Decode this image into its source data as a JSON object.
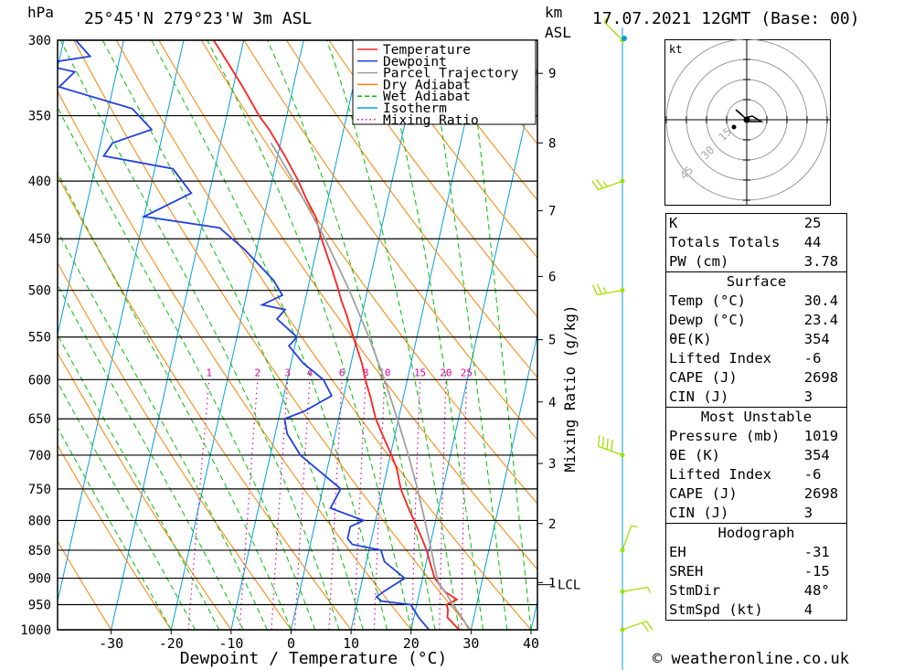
{
  "header": {
    "pressure_unit": "hPa",
    "location": "25°45'N  279°23'W  3m ASL",
    "height_unit_line1": "km",
    "height_unit_line2": "ASL",
    "datetime": "17.07.2021  12GMT  (Base: 00)"
  },
  "chart_data": {
    "type": "line",
    "title": "25°45'N  279°23'W  3m ASL",
    "xlabel": "Dewpoint / Temperature (°C)",
    "ylabel": "hPa",
    "right_axis_label": "Mixing Ratio (g/kg)",
    "x_ticks": [
      -30,
      -20,
      -10,
      0,
      10,
      20,
      30,
      40
    ],
    "xlim": [
      -40,
      40
    ],
    "ylim": [
      1000,
      300
    ],
    "y_scale": "log",
    "y_ticks": [
      300,
      350,
      400,
      450,
      500,
      550,
      600,
      650,
      700,
      750,
      800,
      850,
      900,
      950,
      1000
    ],
    "km_ticks": [
      {
        "km": "1",
        "p": 908
      },
      {
        "km": "2",
        "p": 805
      },
      {
        "km": "3",
        "p": 712
      },
      {
        "km": "4",
        "p": 628
      },
      {
        "km": "5",
        "p": 553
      },
      {
        "km": "6",
        "p": 486
      },
      {
        "km": "7",
        "p": 425
      },
      {
        "km": "8",
        "p": 370
      },
      {
        "km": "9",
        "p": 321
      }
    ],
    "lcl_label": "LCL",
    "lcl_pressure": 912,
    "mixing_ratio_labels": [
      "1",
      "2",
      "3",
      "4",
      "6",
      "8",
      "10",
      "15",
      "20",
      "25"
    ],
    "legend": {
      "placement": "top-center",
      "entries": [
        {
          "name": "Temperature",
          "color": "#ff2020",
          "style": "solid"
        },
        {
          "name": "Dewpoint",
          "color": "#2040e0",
          "style": "solid"
        },
        {
          "name": "Parcel Trajectory",
          "color": "#a0a0a0",
          "style": "solid"
        },
        {
          "name": "Dry Adiabat",
          "color": "#ff8000",
          "style": "solid"
        },
        {
          "name": "Wet Adiabat",
          "color": "#00c000",
          "style": "dashed"
        },
        {
          "name": "Isotherm",
          "color": "#00a0e0",
          "style": "solid"
        },
        {
          "name": "Mixing Ratio",
          "color": "#e000a0",
          "style": "dotted"
        }
      ]
    },
    "series": [
      {
        "name": "Temperature",
        "color": "#ff2020",
        "points": [
          [
            1013,
            30.4
          ],
          [
            1000,
            28.0
          ],
          [
            975,
            25.6
          ],
          [
            960,
            25.4
          ],
          [
            950,
            25.0
          ],
          [
            940,
            26.5
          ],
          [
            925,
            24.2
          ],
          [
            900,
            22.0
          ],
          [
            875,
            20.8
          ],
          [
            850,
            19.6
          ],
          [
            830,
            18.4
          ],
          [
            800,
            16.4
          ],
          [
            780,
            15.0
          ],
          [
            750,
            13.0
          ],
          [
            720,
            11.6
          ],
          [
            700,
            10.2
          ],
          [
            680,
            8.6
          ],
          [
            650,
            6.2
          ],
          [
            620,
            4.4
          ],
          [
            600,
            3.0
          ],
          [
            580,
            1.8
          ],
          [
            550,
            -0.6
          ],
          [
            525,
            -2.6
          ],
          [
            510,
            -4.0
          ],
          [
            500,
            -4.8
          ],
          [
            480,
            -6.6
          ],
          [
            450,
            -9.6
          ],
          [
            430,
            -11.4
          ],
          [
            415,
            -13.6
          ],
          [
            400,
            -15.6
          ],
          [
            380,
            -18.8
          ],
          [
            360,
            -22.4
          ],
          [
            350,
            -24.6
          ],
          [
            330,
            -28.4
          ],
          [
            315,
            -31.6
          ],
          [
            300,
            -35.0
          ]
        ]
      },
      {
        "name": "Dewpoint",
        "color": "#2040e0",
        "points": [
          [
            1013,
            23.4
          ],
          [
            1000,
            23.0
          ],
          [
            975,
            20.8
          ],
          [
            950,
            19.0
          ],
          [
            943,
            14.0
          ],
          [
            935,
            13.0
          ],
          [
            925,
            14.0
          ],
          [
            900,
            17.0
          ],
          [
            870,
            13.0
          ],
          [
            850,
            12.0
          ],
          [
            840,
            7.0
          ],
          [
            830,
            6.0
          ],
          [
            810,
            6.0
          ],
          [
            800,
            8.0
          ],
          [
            780,
            2.0
          ],
          [
            750,
            3.0
          ],
          [
            700,
            -5.0
          ],
          [
            670,
            -8.0
          ],
          [
            650,
            -9.0
          ],
          [
            640,
            -6.0
          ],
          [
            620,
            -2.0
          ],
          [
            600,
            -4.0
          ],
          [
            580,
            -8.0
          ],
          [
            560,
            -11.0
          ],
          [
            550,
            -10.0
          ],
          [
            530,
            -14.0
          ],
          [
            520,
            -13.0
          ],
          [
            515,
            -17.0
          ],
          [
            505,
            -14.0
          ],
          [
            490,
            -16.0
          ],
          [
            460,
            -22.0
          ],
          [
            440,
            -27.0
          ],
          [
            430,
            -40.0
          ],
          [
            410,
            -33.0
          ],
          [
            390,
            -37.0
          ],
          [
            380,
            -49.0
          ],
          [
            370,
            -48.0
          ],
          [
            360,
            -42.0
          ],
          [
            345,
            -46.0
          ],
          [
            330,
            -59.0
          ],
          [
            320,
            -57.0
          ],
          [
            315,
            -63.0
          ],
          [
            310,
            -55.0
          ],
          [
            300,
            -58.0
          ]
        ]
      },
      {
        "name": "Parcel Trajectory",
        "color": "#a0a0a0",
        "points": [
          [
            1013,
            30.4
          ],
          [
            980,
            28.4
          ],
          [
            950,
            26.0
          ],
          [
            930,
            24.6
          ],
          [
            912,
            23.0
          ],
          [
            900,
            22.4
          ],
          [
            850,
            20.4
          ],
          [
            800,
            18.2
          ],
          [
            750,
            15.8
          ],
          [
            700,
            13.0
          ],
          [
            650,
            9.8
          ],
          [
            600,
            6.2
          ],
          [
            550,
            2.0
          ],
          [
            500,
            -3.0
          ],
          [
            450,
            -9.0
          ],
          [
            400,
            -16.4
          ],
          [
            380,
            -19.8
          ],
          [
            370,
            -21.6
          ]
        ]
      }
    ]
  },
  "wind_profile": {
    "barb_color": "#a0e000",
    "levels": [
      {
        "p": 300,
        "dir": 315,
        "spd": 5
      },
      {
        "p": 400,
        "dir": 250,
        "spd": 15
      },
      {
        "p": 500,
        "dir": 260,
        "spd": 15
      },
      {
        "p": 700,
        "dir": 290,
        "spd": 20
      },
      {
        "p": 850,
        "dir": 20,
        "spd": 5
      },
      {
        "p": 925,
        "dir": 80,
        "spd": 5
      },
      {
        "p": 1000,
        "dir": 70,
        "spd": 10
      }
    ]
  },
  "hodograph": {
    "unit_label": "kt",
    "ring_labels": [
      "15",
      "30",
      "45"
    ]
  },
  "indices": {
    "K_label": "K",
    "K": "25",
    "TT_label": "Totals Totals",
    "TT": "44",
    "PW_label": "PW (cm)",
    "PW": "3.78",
    "surface": {
      "title": "Surface",
      "rows": [
        {
          "label": "Temp (°C)",
          "value": "30.4"
        },
        {
          "label": "Dewp (°C)",
          "value": "23.4"
        },
        {
          "label": "θE(K)",
          "value": "354"
        },
        {
          "label": "Lifted Index",
          "value": "-6"
        },
        {
          "label": "CAPE (J)",
          "value": "2698"
        },
        {
          "label": "CIN (J)",
          "value": "3"
        }
      ]
    },
    "most_unstable": {
      "title": "Most Unstable",
      "rows": [
        {
          "label": "Pressure (mb)",
          "value": "1019"
        },
        {
          "label": "θE (K)",
          "value": "354"
        },
        {
          "label": "Lifted Index",
          "value": "-6"
        },
        {
          "label": "CAPE (J)",
          "value": "2698"
        },
        {
          "label": "CIN (J)",
          "value": "3"
        }
      ]
    },
    "hodograph_params": {
      "title": "Hodograph",
      "rows": [
        {
          "label": "EH",
          "value": "-31"
        },
        {
          "label": "SREH",
          "value": "-15"
        },
        {
          "label": "StmDir",
          "value": "48°"
        },
        {
          "label": "StmSpd (kt)",
          "value": "4"
        }
      ]
    }
  },
  "footer": {
    "copyright": "© weatheronline.co.uk"
  },
  "colors": {
    "temperature": "#ff2020",
    "dewpoint": "#2040e0",
    "parcel": "#a0a0a0",
    "dry_adiabat": "#ff8000",
    "wet_adiabat": "#00c000",
    "isotherm": "#00a0e0",
    "mixing_ratio": "#e000a0",
    "wind_barb": "#a0e000"
  }
}
